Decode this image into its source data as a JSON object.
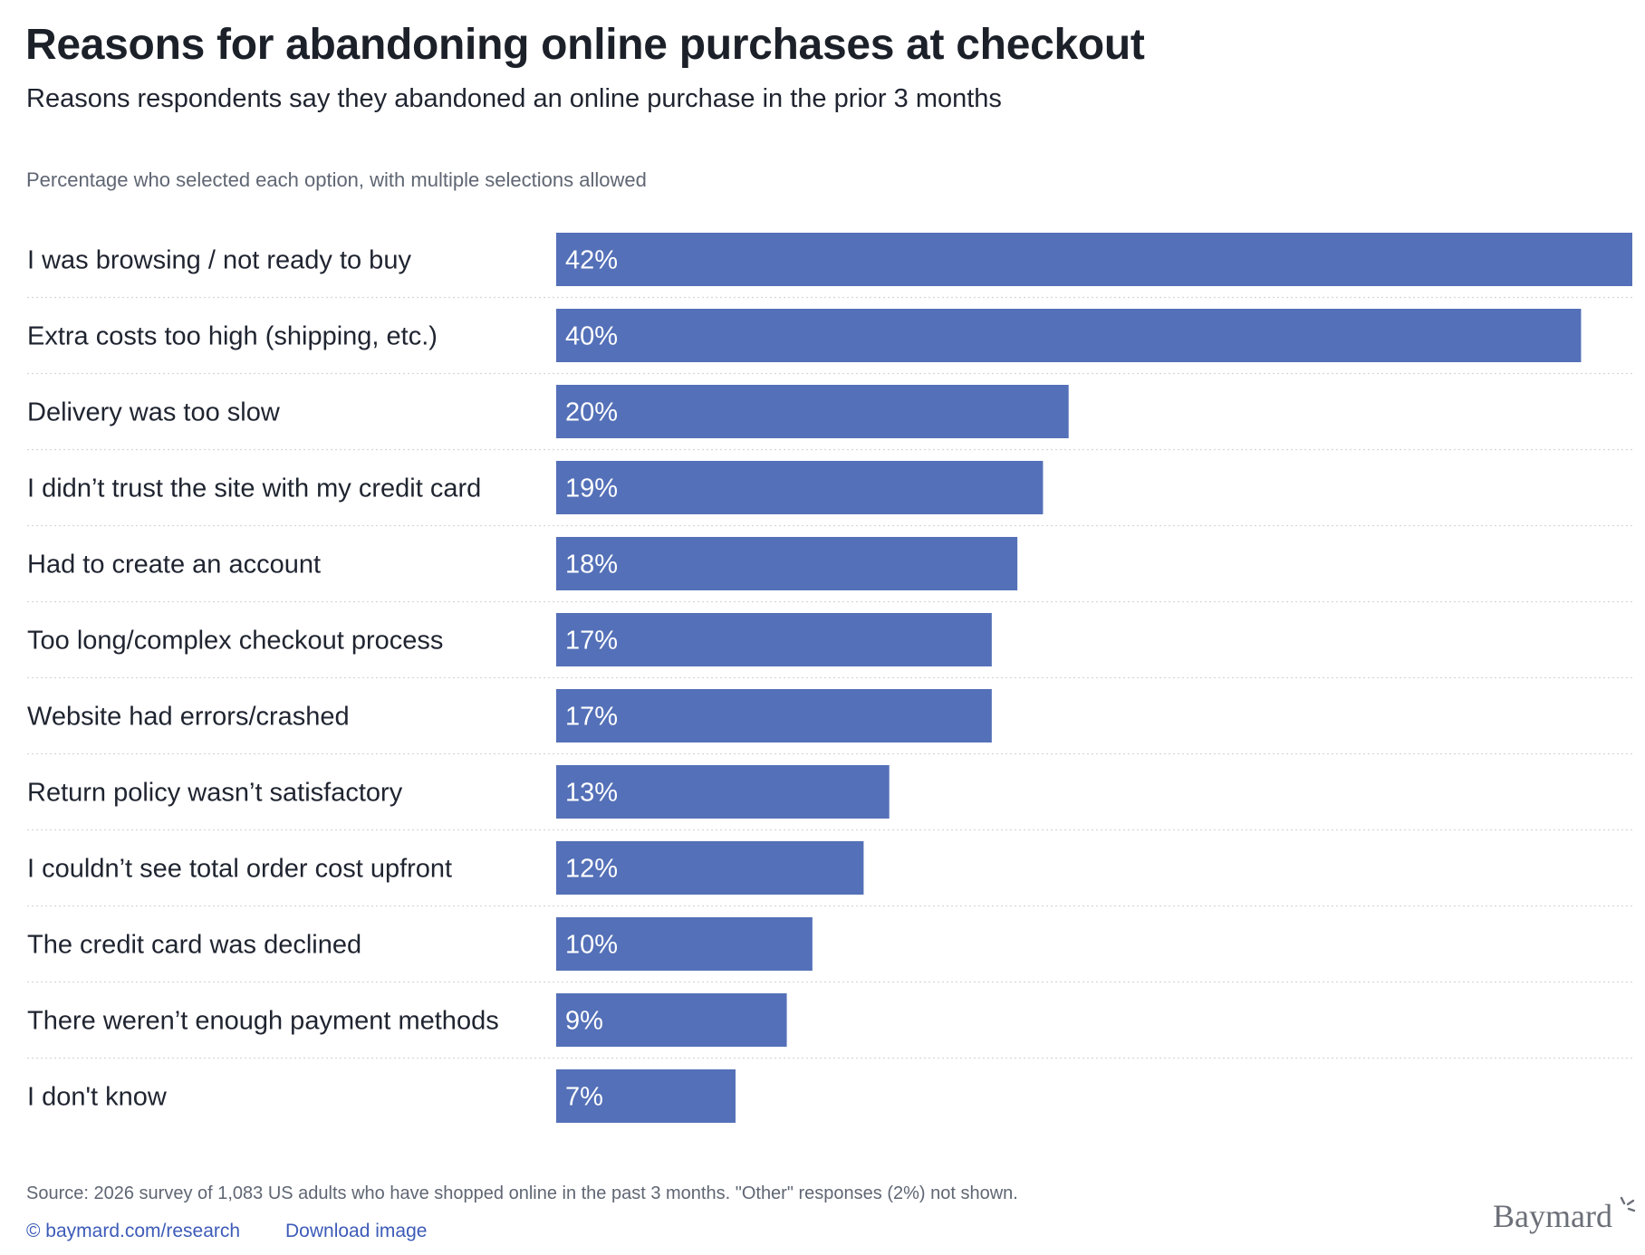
{
  "header": {
    "title": "Reasons for abandoning online purchases at checkout",
    "subtitle": "Reasons respondents say they abandoned an online purchase in the prior 3 months",
    "note": "Percentage who selected each option, with multiple selections allowed"
  },
  "chart_data": {
    "type": "bar",
    "orientation": "horizontal",
    "categories": [
      "I was browsing / not ready to buy",
      "Extra costs too high (shipping, etc.)",
      "Delivery was too slow",
      "I didn’t trust the site with my credit card",
      "Had to create an account",
      "Too long/complex checkout process",
      "Website had errors/crashed",
      "Return policy wasn’t satisfactory",
      "I couldn’t see total order cost upfront",
      "The credit card was declined",
      "There weren’t enough payment methods",
      "I don't know"
    ],
    "values": [
      42,
      40,
      20,
      19,
      18,
      17,
      17,
      13,
      12,
      10,
      9,
      7
    ],
    "value_labels": [
      "42%",
      "40%",
      "20%",
      "19%",
      "18%",
      "17%",
      "17%",
      "13%",
      "12%",
      "10%",
      "9%",
      "7%"
    ],
    "xlim": [
      0,
      42
    ],
    "grid": false,
    "legend": "none",
    "bar_color": "#5470b8"
  },
  "footer": {
    "source": "Source: 2026 survey of 1,083 US adults who have shopped online in the past 3 months. \"Other\" responses (2%) not shown.",
    "copyright_link": "© baymard.com/research",
    "download_link": "Download image"
  },
  "logo": {
    "text": "Baymard"
  }
}
